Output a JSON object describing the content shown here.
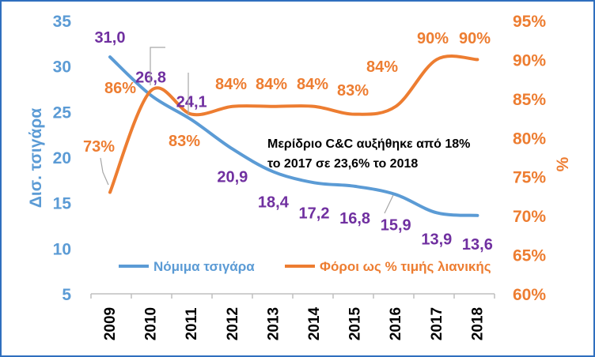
{
  "chart_data": {
    "type": "line",
    "x": [
      "2009",
      "2010",
      "2011",
      "2012",
      "2013",
      "2014",
      "2015",
      "2016",
      "2017",
      "2018"
    ],
    "series": [
      {
        "name": "Νόμιμα τσιγάρα",
        "axis": "left",
        "values": [
          31.0,
          26.8,
          24.1,
          20.9,
          18.4,
          17.2,
          16.8,
          15.9,
          13.9,
          13.6
        ],
        "labels": [
          "31,0",
          "26,8",
          "24,1",
          "20,9",
          "18,4",
          "17,2",
          "16,8",
          "15,9",
          "13,9",
          "13,6"
        ],
        "color": "#5b9bd5",
        "label_color": "#7030a0"
      },
      {
        "name": "Φόροι ως % τιμής λιανικής",
        "axis": "right",
        "values": [
          73,
          86,
          83,
          84,
          84,
          84,
          83,
          84,
          90,
          90
        ],
        "labels": [
          "73%",
          "86%",
          "83%",
          "84%",
          "84%",
          "84%",
          "83%",
          "84%",
          "90%",
          "90%"
        ],
        "color": "#ed7d31",
        "label_color": "#ed7d31"
      }
    ],
    "y_left": {
      "label": "Δισ. τσιγάρα",
      "lim": [
        5,
        35
      ],
      "ticks": [
        "5",
        "10",
        "15",
        "20",
        "25",
        "30",
        "35"
      ],
      "color": "#5b9bd5"
    },
    "y_right": {
      "label": "%",
      "lim": [
        60,
        95
      ],
      "ticks": [
        "60%",
        "65%",
        "70%",
        "75%",
        "80%",
        "85%",
        "90%",
        "95%"
      ],
      "color": "#ed7d31"
    },
    "annotation": [
      "Μερίδριο C&C αυξήθηκε από 18%",
      "το 2017 σε 23,6% το 2018"
    ],
    "legend_placement": "bottom",
    "grid": false
  }
}
